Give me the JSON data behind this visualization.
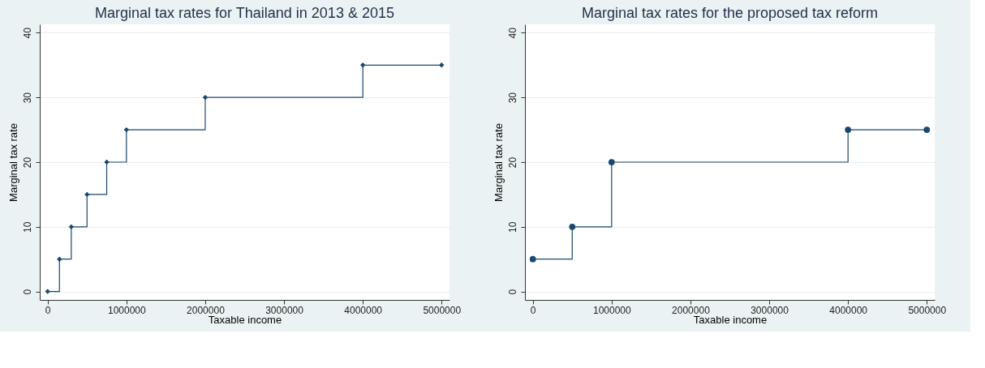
{
  "chart_data": [
    {
      "type": "step",
      "title": "Marginal tax rates for Thailand in 2013 & 2015",
      "xlabel": "Taxable income",
      "ylabel": "Marginal tax rate",
      "x": [
        0,
        150000,
        300000,
        500000,
        750000,
        1000000,
        2000000,
        4000000,
        5000000
      ],
      "series": [
        {
          "color": "#1a476f",
          "values": [
            0,
            5,
            10,
            15,
            20,
            25,
            30,
            35,
            35
          ]
        }
      ],
      "xlim": [
        -100000,
        5100000
      ],
      "xticks": [
        0,
        1000000,
        2000000,
        3000000,
        4000000,
        5000000
      ],
      "ylim": [
        -1.3,
        41.3
      ],
      "yticks": [
        0,
        10,
        20,
        30,
        40
      ],
      "grid": "y",
      "marker": "diamond",
      "line_style": "solid"
    },
    {
      "type": "step",
      "title": "Marginal tax rates for the proposed tax reform",
      "xlabel": "Taxable income",
      "ylabel": "Marginal tax rate",
      "x": [
        0,
        500000,
        1000000,
        4000000,
        5000000
      ],
      "series": [
        {
          "color": "#1a476f",
          "values": [
            5,
            10,
            20,
            25,
            25
          ]
        }
      ],
      "xlim": [
        -100000,
        5100000
      ],
      "xticks": [
        0,
        1000000,
        2000000,
        3000000,
        4000000,
        5000000
      ],
      "ylim": [
        -1.3,
        41.3
      ],
      "yticks": [
        0,
        10,
        20,
        30,
        40
      ],
      "grid": "y",
      "marker": "circle",
      "line_style": "solid"
    }
  ]
}
